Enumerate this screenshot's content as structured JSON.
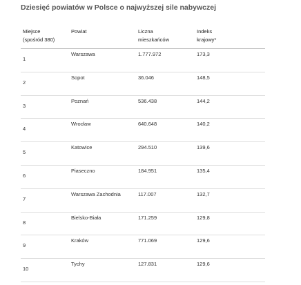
{
  "title": "Dziesięć powiatów w Polsce o najwyższej sile nabywczej",
  "table": {
    "headers": [
      "Miejsce\n(spośród 380)",
      "Powiat",
      "Liczna\nmieszkańców",
      "Indeks\nkrajowy*"
    ],
    "rows": [
      [
        1,
        "Warszawa",
        "1.777.972",
        "173,3"
      ],
      [
        2,
        "Sopot",
        "36.046",
        "148,5"
      ],
      [
        3,
        "Poznań",
        "536.438",
        "144,2"
      ],
      [
        4,
        "Wrocław",
        "640.648",
        "140,2"
      ],
      [
        5,
        "Katowice",
        "294.510",
        "139,6"
      ],
      [
        6,
        "Piaseczno",
        "184.951",
        "135,4"
      ],
      [
        7,
        "Warszawa Zachodnia",
        "117.007",
        "132,7"
      ],
      [
        8,
        "Bielsko-Biała",
        "171.259",
        "129,8"
      ],
      [
        9,
        "Kraków",
        "771.069",
        "129,6"
      ],
      [
        10,
        "Tychy",
        "127.831",
        "129,6"
      ]
    ]
  }
}
